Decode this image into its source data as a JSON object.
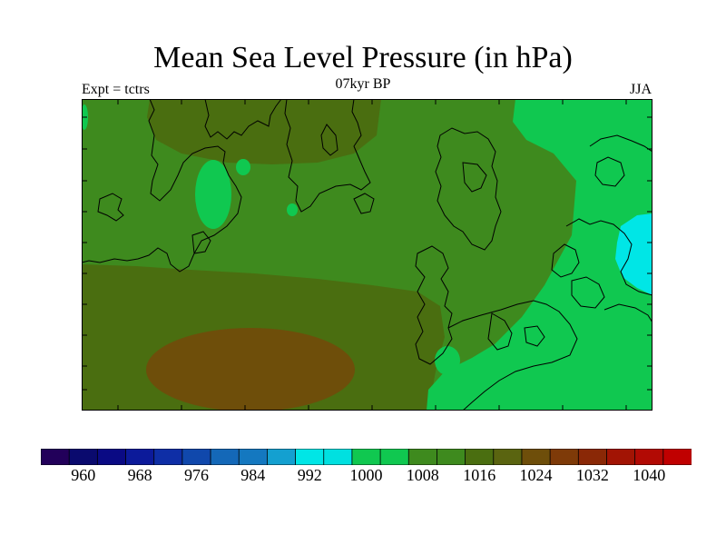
{
  "title": "Mean Sea Level Pressure (in hPa)",
  "subtitle": "07kyr BP",
  "left_label": "Expt = tctrs",
  "right_label": "JJA",
  "colorbar": {
    "colors": [
      "#22005a",
      "#0a0a6e",
      "#0a0a84",
      "#0c1a9a",
      "#0e2ea6",
      "#1048ac",
      "#1468b8",
      "#1478c0",
      "#14a0d0",
      "#00e6e6",
      "#00e0e0",
      "#10c850",
      "#10c850",
      "#3e8a1e",
      "#3e8a1e",
      "#4a6e10",
      "#5a6410",
      "#6e4e0a",
      "#7e3a08",
      "#8a2806",
      "#a21404",
      "#b20a04",
      "#c00000"
    ],
    "tick_labels": [
      "960",
      "968",
      "976",
      "984",
      "992",
      "1000",
      "1008",
      "1016",
      "1024",
      "1032",
      "1040"
    ]
  }
}
